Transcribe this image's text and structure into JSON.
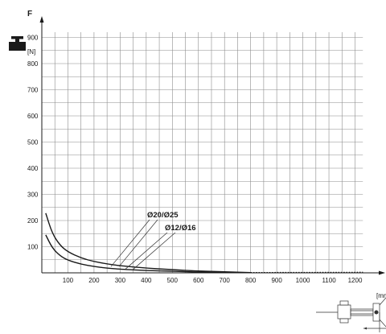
{
  "chart_data": {
    "type": "line",
    "y_axis_label": "F",
    "y_unit": "[N]",
    "x_unit": "[mm]",
    "xlim": [
      0,
      1230
    ],
    "ylim": [
      0,
      920
    ],
    "grid": true,
    "x_ticks": [
      100,
      200,
      300,
      400,
      500,
      600,
      700,
      800,
      900,
      1000,
      1100,
      1200
    ],
    "y_ticks": [
      100,
      200,
      300,
      400,
      500,
      600,
      700,
      800,
      900
    ],
    "series": [
      {
        "name": "Ø20/Ø25",
        "points": [
          [
            15,
            228
          ],
          [
            40,
            150
          ],
          [
            70,
            105
          ],
          [
            100,
            80
          ],
          [
            150,
            57
          ],
          [
            200,
            43
          ],
          [
            250,
            34
          ],
          [
            300,
            27
          ],
          [
            400,
            18
          ],
          [
            500,
            12
          ],
          [
            600,
            7
          ],
          [
            700,
            4
          ],
          [
            800,
            1
          ]
        ],
        "dotted_from": 800,
        "dotted_to": 1230
      },
      {
        "name": "Ø12/Ø16",
        "points": [
          [
            15,
            145
          ],
          [
            40,
            95
          ],
          [
            70,
            65
          ],
          [
            100,
            48
          ],
          [
            150,
            33
          ],
          [
            200,
            24
          ],
          [
            250,
            18
          ],
          [
            300,
            14
          ],
          [
            400,
            9
          ],
          [
            500,
            6
          ],
          [
            600,
            3
          ],
          [
            700,
            1.5
          ],
          [
            800,
            0.5
          ]
        ],
        "dotted_from": 800,
        "dotted_to": 1230
      }
    ],
    "annotations": [
      {
        "text": "Ø20/Ø25",
        "target": [
          265,
          24
        ]
      },
      {
        "text": "Ø12/Ø16",
        "target": [
          320,
          14
        ]
      }
    ]
  }
}
